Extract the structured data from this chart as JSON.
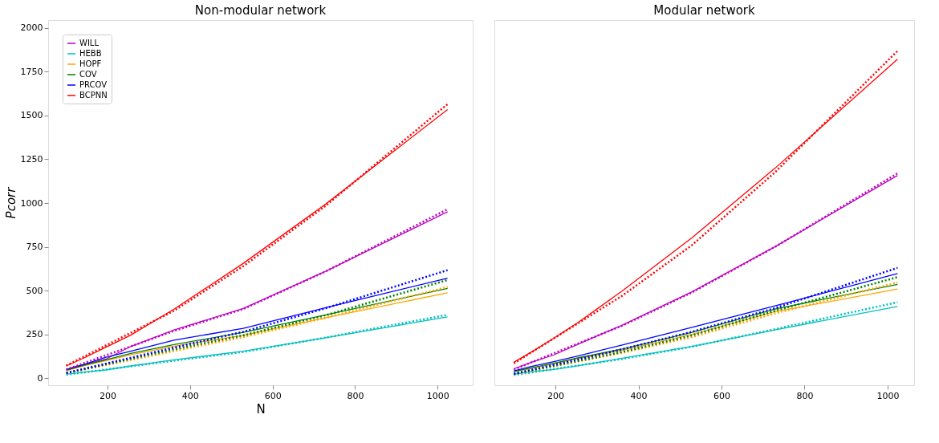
{
  "chart_data": [
    {
      "type": "line",
      "title": "Non-modular network",
      "xlabel": "N",
      "ylabel": "Pcorr",
      "x": [
        100,
        144,
        196,
        256,
        361,
        529,
        729,
        1024
      ],
      "xlim": [
        56,
        1085
      ],
      "xticks": [
        200,
        400,
        600,
        800,
        1000
      ],
      "ylim": [
        -40,
        2045
      ],
      "yticks": [
        0,
        250,
        500,
        750,
        1000,
        1250,
        1500,
        1750,
        2000
      ],
      "grid": false,
      "legend": "top left",
      "series": [
        {
          "name": "WILL",
          "color": "#bf00bf",
          "values": [
            50,
            78,
            109,
            181,
            276,
            398,
            611,
            950
          ]
        },
        {
          "name": "HEBB",
          "color": "#00bfbf",
          "values": [
            22,
            35,
            47,
            70,
            105,
            154,
            231,
            350
          ]
        },
        {
          "name": "HOPF",
          "color": "#ffa500",
          "values": [
            43,
            72,
            100,
            134,
            183,
            245,
            345,
            488
          ]
        },
        {
          "name": "COV",
          "color": "#008000",
          "values": [
            45,
            75,
            105,
            142,
            192,
            262,
            362,
            513
          ]
        },
        {
          "name": "PRCOV",
          "color": "#0000ff",
          "values": [
            50,
            80,
            120,
            154,
            217,
            285,
            403,
            571
          ]
        },
        {
          "name": "BCPNN",
          "color": "#ff0000",
          "values": [
            70,
            117,
            177,
            246,
            394,
            656,
            995,
            1534
          ]
        },
        {
          "type": "line",
          "line_style": "dotted",
          "marker": "none",
          "color": "#bf00bf",
          "x": [
            100,
            361,
            529,
            729,
            1024
          ],
          "values": [
            50,
            270,
            395,
            610,
            965
          ]
        },
        {
          "type": "line",
          "line_style": "dotted",
          "marker": "none",
          "color": "#00bfbf",
          "x": [
            100,
            361,
            529,
            729,
            1024
          ],
          "values": [
            20,
            100,
            150,
            232,
            362
          ]
        },
        {
          "type": "line",
          "line_style": "dotted",
          "marker": "none",
          "color": "#ffa500",
          "x": [
            100,
            361,
            529,
            729,
            1024
          ],
          "values": [
            28,
            155,
            235,
            345,
            521
          ]
        },
        {
          "type": "line",
          "line_style": "dotted",
          "marker": "none",
          "color": "#008000",
          "x": [
            100,
            361,
            529,
            729,
            1024
          ],
          "values": [
            30,
            165,
            245,
            360,
            561
          ]
        },
        {
          "type": "line",
          "line_style": "dotted",
          "marker": "none",
          "color": "#0000ff",
          "x": [
            100,
            361,
            529,
            729,
            1024
          ],
          "values": [
            30,
            175,
            265,
            400,
            617
          ]
        },
        {
          "type": "line",
          "line_style": "dotted",
          "marker": "none",
          "color": "#ff0000",
          "x": [
            100,
            361,
            529,
            729,
            1024
          ],
          "values": [
            72,
            385,
            640,
            985,
            1565
          ]
        }
      ]
    },
    {
      "type": "line",
      "title": "Modular network",
      "x": [
        100,
        144,
        196,
        256,
        361,
        529,
        729,
        1024
      ],
      "xlim": [
        53,
        1064
      ],
      "xticks": [
        200,
        400,
        600,
        800,
        1000
      ],
      "ylim": [
        -40,
        2045
      ],
      "yticks": [
        0,
        250,
        500,
        750,
        1000,
        1250,
        1500,
        1750,
        2000
      ],
      "grid": false,
      "tick_labels": "x",
      "series": [
        {
          "color": "#bf00bf",
          "values": [
            54,
            92,
            133,
            195,
            303,
            493,
            751,
            1158
          ]
        },
        {
          "color": "#00bfbf",
          "values": [
            23,
            37,
            50,
            72,
            114,
            182,
            276,
            410
          ]
        },
        {
          "color": "#ffa500",
          "values": [
            36,
            57,
            82,
            113,
            159,
            250,
            380,
            509
          ]
        },
        {
          "color": "#008000",
          "values": [
            38,
            60,
            85,
            117,
            167,
            262,
            395,
            536
          ]
        },
        {
          "color": "#0000ff",
          "values": [
            42,
            68,
            95,
            128,
            190,
            290,
            413,
            597
          ]
        },
        {
          "color": "#ff0000",
          "values": [
            91,
            152,
            228,
            321,
            498,
            802,
            1199,
            1822
          ]
        },
        {
          "type": "line",
          "line_style": "dotted",
          "marker": "none",
          "color": "#bf00bf",
          "x": [
            100,
            361,
            529,
            729,
            1024
          ],
          "values": [
            50,
            300,
            490,
            750,
            1170
          ]
        },
        {
          "type": "line",
          "line_style": "dotted",
          "marker": "none",
          "color": "#00bfbf",
          "x": [
            100,
            361,
            529,
            729,
            1024
          ],
          "values": [
            18,
            110,
            180,
            280,
            434
          ]
        },
        {
          "type": "line",
          "line_style": "dotted",
          "marker": "none",
          "color": "#ffa500",
          "x": [
            100,
            361,
            529,
            729,
            1024
          ],
          "values": [
            23,
            145,
            235,
            370,
            547
          ]
        },
        {
          "type": "line",
          "line_style": "dotted",
          "marker": "none",
          "color": "#008000",
          "x": [
            100,
            361,
            529,
            729,
            1024
          ],
          "values": [
            25,
            150,
            245,
            385,
            577
          ]
        },
        {
          "type": "line",
          "line_style": "dotted",
          "marker": "none",
          "color": "#0000ff",
          "x": [
            100,
            361,
            529,
            729,
            1024
          ],
          "values": [
            25,
            165,
            265,
            400,
            630
          ]
        },
        {
          "type": "line",
          "line_style": "dotted",
          "marker": "none",
          "color": "#ff0000",
          "x": [
            100,
            361,
            529,
            729,
            1024
          ],
          "values": [
            85,
            471,
            760,
            1176,
            1869
          ]
        }
      ]
    }
  ]
}
